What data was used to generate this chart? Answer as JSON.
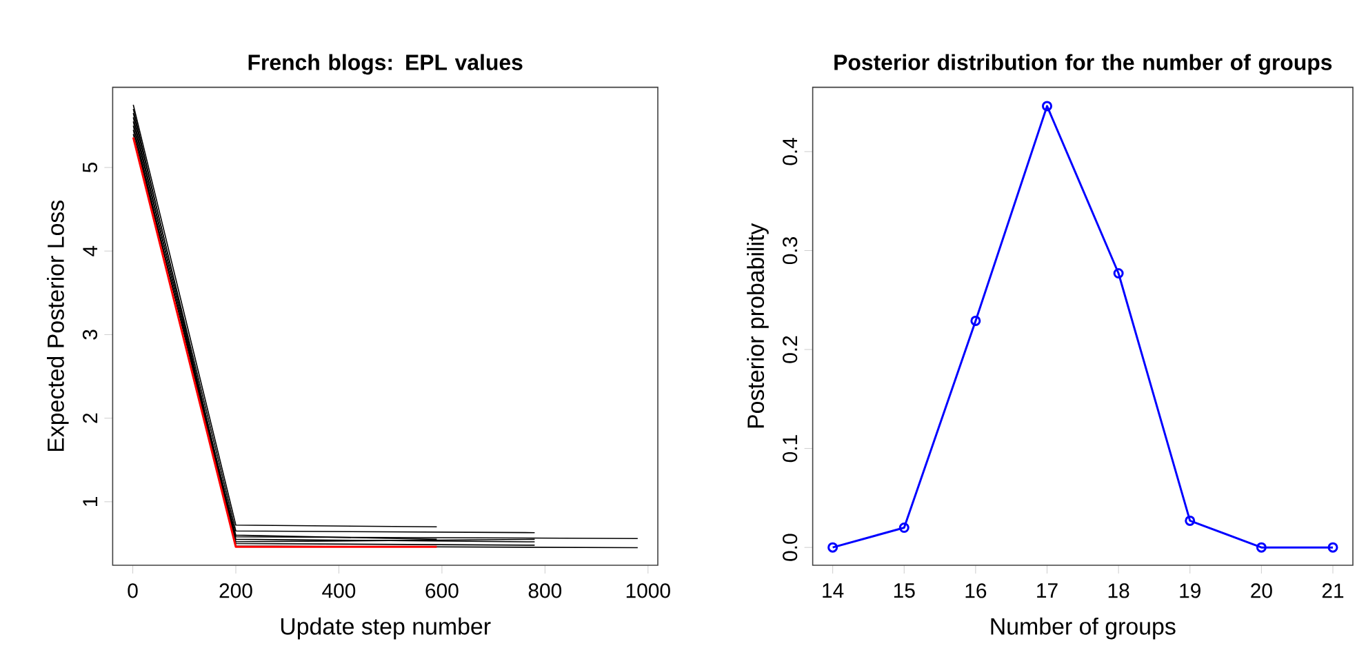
{
  "chart_data": [
    {
      "type": "line",
      "title": "French blogs: EPL values",
      "xlabel": "Update step number",
      "ylabel": "Expected Posterior Loss",
      "xlim": [
        -39,
        1019
      ],
      "ylim": [
        0.24,
        5.96
      ],
      "xticks": [
        0,
        200,
        400,
        600,
        800,
        1000
      ],
      "yticks": [
        1,
        2,
        3,
        4,
        5
      ],
      "series": [
        {
          "color": "#000000",
          "x": [
            1,
            200,
            590
          ],
          "values": [
            5.75,
            0.72,
            0.7
          ]
        },
        {
          "color": "#000000",
          "x": [
            1,
            200,
            780
          ],
          "values": [
            5.65,
            0.65,
            0.63
          ]
        },
        {
          "color": "#000000",
          "x": [
            1,
            200,
            980
          ],
          "values": [
            5.55,
            0.58,
            0.56
          ]
        },
        {
          "color": "#000000",
          "x": [
            1,
            200,
            980
          ],
          "values": [
            5.5,
            0.47,
            0.45
          ]
        },
        {
          "color": "#000000",
          "x": [
            1,
            200,
            780
          ],
          "values": [
            5.45,
            0.55,
            0.52
          ]
        },
        {
          "color": "#000000",
          "x": [
            1,
            200,
            780
          ],
          "values": [
            5.6,
            0.5,
            0.48
          ]
        },
        {
          "color": "#000000",
          "x": [
            1,
            200,
            590
          ],
          "values": [
            5.4,
            0.6,
            0.55
          ]
        },
        {
          "color": "#000000",
          "x": [
            1,
            200,
            780
          ],
          "values": [
            5.7,
            0.52,
            0.55
          ]
        },
        {
          "color": "#ff0000",
          "x": [
            1,
            200,
            590
          ],
          "values": [
            5.36,
            0.46,
            0.46
          ]
        }
      ]
    },
    {
      "type": "line",
      "title": "Posterior distribution for the number of groups",
      "xlabel": "Number of groups",
      "ylabel": "Posterior probability",
      "xlim": [
        13.72,
        21.28
      ],
      "ylim": [
        -0.018,
        0.465
      ],
      "xticks": [
        14,
        15,
        16,
        17,
        18,
        19,
        20,
        21
      ],
      "yticks": [
        {
          "value": 0,
          "label": "0.0"
        },
        0.1,
        0.2,
        0.3,
        0.4
      ],
      "marker": "circle",
      "series": [
        {
          "color": "#0000ff",
          "x": [
            14,
            15,
            16,
            17,
            18,
            19,
            20,
            21
          ],
          "values": [
            0,
            0.02,
            0.229,
            0.446,
            0.277,
            0.027,
            0,
            0
          ]
        }
      ]
    }
  ]
}
